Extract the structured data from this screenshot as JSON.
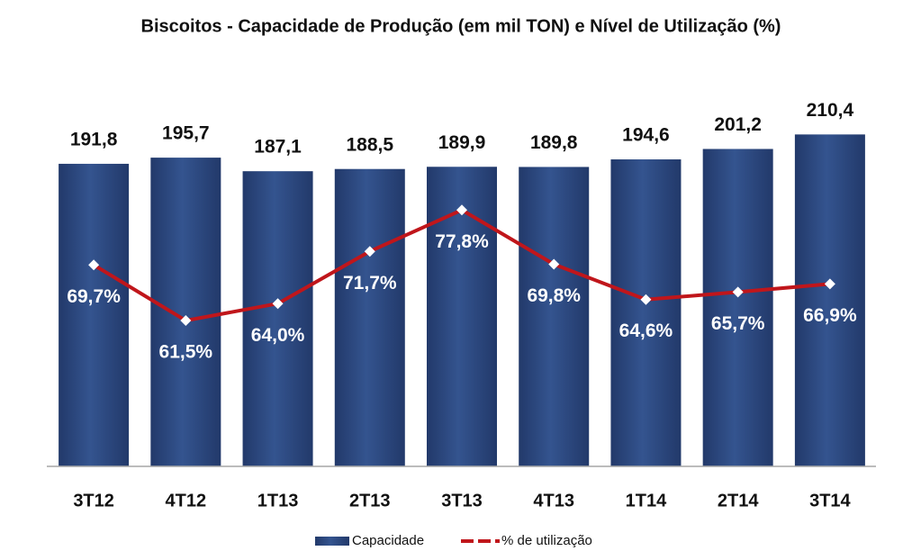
{
  "chart_data": {
    "type": "bar",
    "title": "Biscoitos - Capacidade de Produção (em mil TON) e Nível de Utilização (%)",
    "categories": [
      "3T12",
      "4T12",
      "1T13",
      "2T13",
      "3T13",
      "4T13",
      "1T14",
      "2T14",
      "3T14"
    ],
    "series": [
      {
        "name": "Capacidade",
        "color": "#2f4d85",
        "values": [
          191.8,
          195.7,
          187.1,
          188.5,
          189.9,
          189.8,
          194.6,
          201.2,
          210.4
        ],
        "value_labels": [
          "191,8",
          "195,7",
          "187,1",
          "188,5",
          "189,9",
          "189,8",
          "194,6",
          "201,2",
          "210,4"
        ]
      },
      {
        "name": "% de utilização",
        "color": "#c0161b",
        "type": "line",
        "axis": "y2",
        "values": [
          69.7,
          61.5,
          64.0,
          71.7,
          77.8,
          69.8,
          64.6,
          65.7,
          66.9
        ],
        "value_labels": [
          "69,7%",
          "61,5%",
          "64,0%",
          "71,7%",
          "77,8%",
          "69,8%",
          "64,6%",
          "65,7%",
          "66,9%"
        ]
      }
    ],
    "ylim": [
      0,
      230
    ],
    "y2lim": [
      40,
      93.5
    ],
    "legend": "bottom"
  }
}
